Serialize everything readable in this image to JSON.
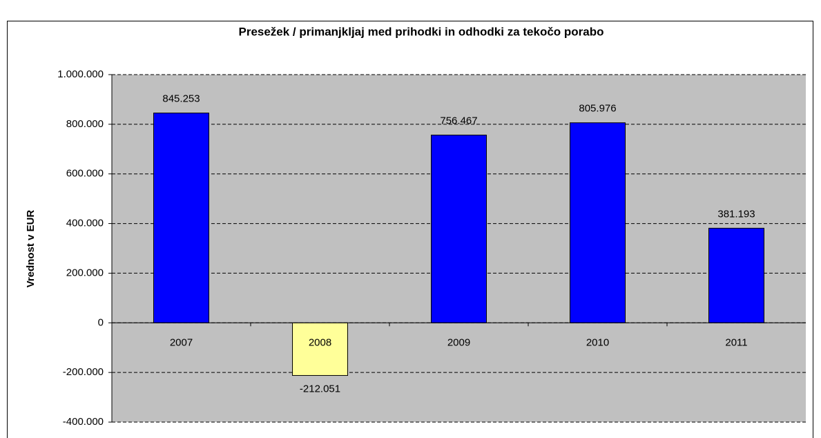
{
  "chart_data": {
    "type": "bar",
    "title": "Presežek / primanjkljaj med prihodki in odhodki za tekočo porabo",
    "ylabel": "Vrednost v EUR",
    "categories": [
      "2007",
      "2008",
      "2009",
      "2010",
      "2011"
    ],
    "values": [
      845253,
      -212051,
      756467,
      805976,
      381193
    ],
    "value_labels": [
      "845.253",
      "-212.051",
      "756.467",
      "805.976",
      "381.193"
    ],
    "colors": [
      "#0000ff",
      "#ffff99",
      "#0000ff",
      "#0000ff",
      "#0000ff"
    ],
    "ylim": [
      -400000,
      1000000
    ],
    "yticks": [
      {
        "value": -400000,
        "label": "-400.000"
      },
      {
        "value": -200000,
        "label": "-200.000"
      },
      0,
      {
        "value": 200000,
        "label": "200.000"
      },
      {
        "value": 400000,
        "label": "400.000"
      },
      {
        "value": 600000,
        "label": "600.000"
      },
      {
        "value": 800000,
        "label": "800.000"
      },
      {
        "value": 1000000,
        "label": "1.000.000"
      }
    ],
    "grid": true
  }
}
